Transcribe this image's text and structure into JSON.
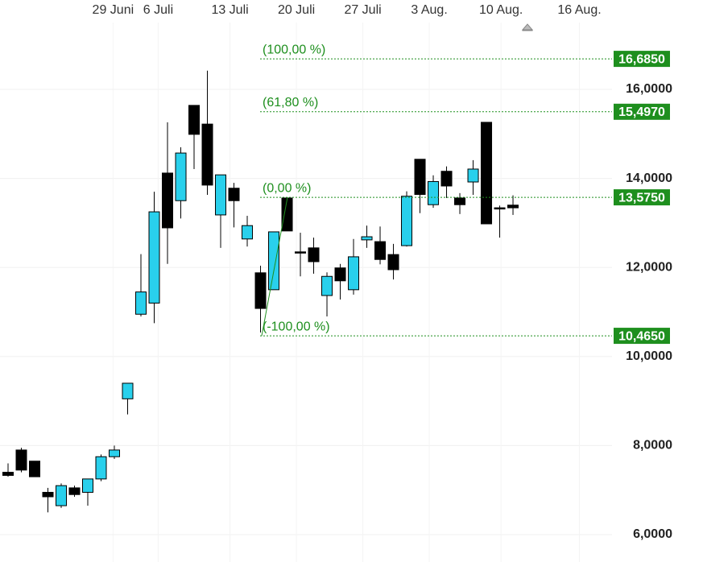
{
  "chart_data": {
    "type": "candlestick",
    "open": [
      7.4,
      7.9,
      7.65,
      6.95,
      6.65,
      7.05,
      6.95,
      7.25,
      7.75,
      9.05,
      10.95,
      11.2,
      14.12,
      13.5,
      15.64,
      15.22,
      13.18,
      13.78,
      12.64,
      11.88,
      11.5,
      13.56,
      12.35,
      12.44,
      11.37,
      11.99,
      11.5,
      12.62,
      12.58,
      12.29,
      12.49,
      14.43,
      13.41,
      14.16,
      13.56,
      13.92,
      15.26,
      13.34,
      13.4
    ],
    "high": [
      7.6,
      7.95,
      7.65,
      7.05,
      7.15,
      7.1,
      7.25,
      7.8,
      8.0,
      9.4,
      12.3,
      13.7,
      15.26,
      14.7,
      15.64,
      16.42,
      14.08,
      13.9,
      13.16,
      12.04,
      12.8,
      13.56,
      12.78,
      12.67,
      11.89,
      12.08,
      12.64,
      12.94,
      12.92,
      12.53,
      13.71,
      14.43,
      14.07,
      14.27,
      13.67,
      14.41,
      15.26,
      13.39,
      13.62
    ],
    "low": [
      7.3,
      7.4,
      7.3,
      6.5,
      6.6,
      6.85,
      6.65,
      7.2,
      7.7,
      8.7,
      10.9,
      10.75,
      12.08,
      13.1,
      14.21,
      13.63,
      12.44,
      12.9,
      12.47,
      10.54,
      11.5,
      12.82,
      11.8,
      11.86,
      10.9,
      11.28,
      11.39,
      12.44,
      12.07,
      11.73,
      12.47,
      13.22,
      13.34,
      13.56,
      13.2,
      13.63,
      12.98,
      12.67,
      13.18
    ],
    "close": [
      7.33,
      7.45,
      7.3,
      6.85,
      7.1,
      6.9,
      7.25,
      7.75,
      7.9,
      9.4,
      11.45,
      13.25,
      12.89,
      14.57,
      14.99,
      13.85,
      14.08,
      13.5,
      12.94,
      11.08,
      12.8,
      12.82,
      12.35,
      12.13,
      11.8,
      11.7,
      12.24,
      12.69,
      12.18,
      11.95,
      13.6,
      13.64,
      13.93,
      13.83,
      13.41,
      14.21,
      12.98,
      13.34,
      13.34
    ],
    "up_color": "#29d0ec",
    "down_color": "#000000",
    "xlim": [
      -0.606,
      52.3
    ],
    "xticks": [
      {
        "value": 7.9,
        "label": "29 Juni"
      },
      {
        "value": 11.3,
        "label": "6 Juli"
      },
      {
        "value": 16.7,
        "label": "13 Juli"
      },
      {
        "value": 21.7,
        "label": "20 Juli"
      },
      {
        "value": 26.7,
        "label": "27 Juli"
      },
      {
        "value": 31.7,
        "label": "3 Aug."
      },
      {
        "value": 37.1,
        "label": "10 Aug."
      },
      {
        "value": 43,
        "label": "16 Aug."
      }
    ],
    "ylim": [
      5.385,
      18.007
    ],
    "yticks": [
      {
        "value": 6,
        "label": "6,0000"
      },
      {
        "value": 8,
        "label": "8,0000"
      },
      {
        "value": 10,
        "label": "10,0000"
      },
      {
        "value": 12,
        "label": "12,0000"
      },
      {
        "value": 14,
        "label": "14,0000"
      },
      {
        "value": 16,
        "label": "16,0000"
      }
    ],
    "grid": true,
    "fib_color": "#1e8f1e",
    "fibonacci": [
      {
        "label": "(100,00 %)",
        "value": 16.685,
        "value_label": "16,6850"
      },
      {
        "label": "(61,80 %)",
        "value": 15.497,
        "value_label": "15,4970"
      },
      {
        "label": "(0,00 %)",
        "value": 13.575,
        "value_label": "13,5750"
      },
      {
        "label": "(-100,00 %)",
        "value": 10.465,
        "value_label": "10,4650"
      }
    ]
  }
}
